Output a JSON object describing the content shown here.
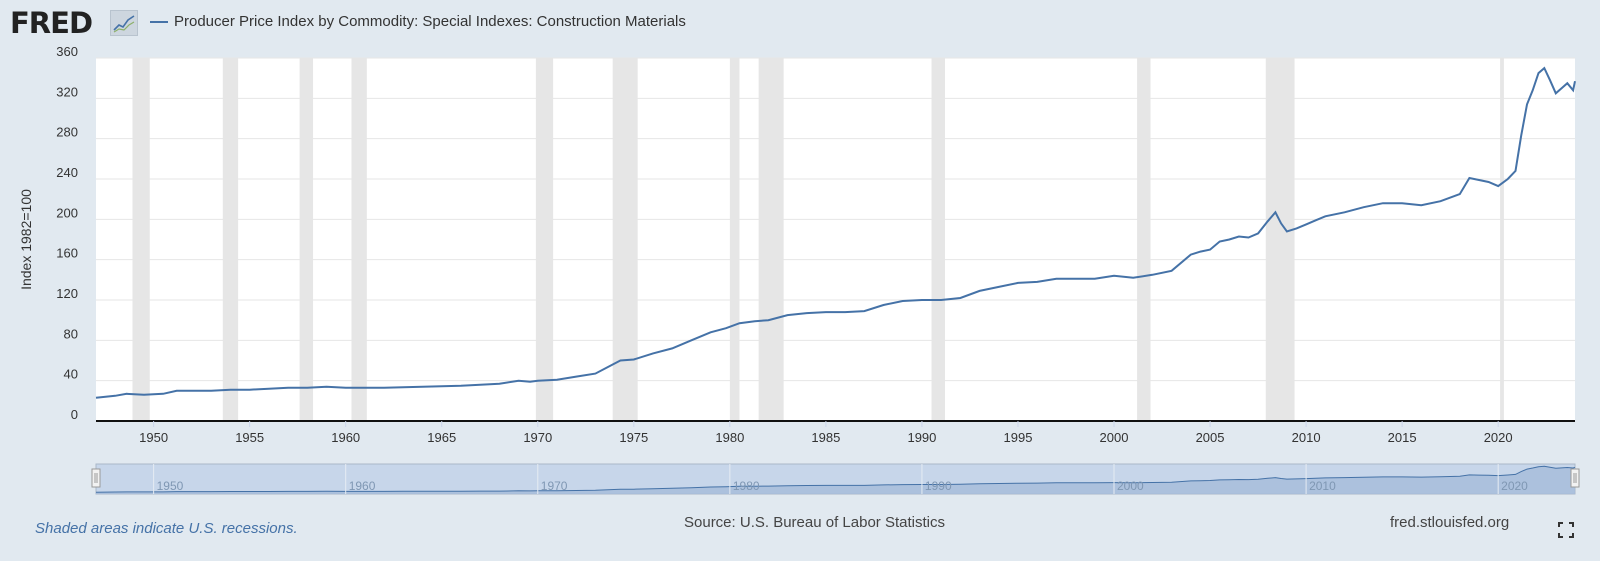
{
  "header": {
    "logo_text": "FRED",
    "logo_icon": "line-chart-icon",
    "series_title": "Producer Price Index by Commodity: Special Indexes: Construction Materials"
  },
  "colors": {
    "background": "#e1e9f0",
    "plot_background": "#ffffff",
    "series_line": "#4572a7",
    "recession_shade": "#e6e6e6",
    "grid": "#e6e6e6",
    "navigator_fill": "#a5bcd9",
    "navigator_line": "#4572a7"
  },
  "chart_data": {
    "type": "line",
    "title": "Producer Price Index by Commodity: Special Indexes: Construction Materials",
    "xlabel": "",
    "ylabel": "Index 1982=100",
    "xlim": [
      1947.0,
      2024.0
    ],
    "ylim": [
      0,
      360
    ],
    "yticks": [
      0,
      40,
      80,
      120,
      160,
      200,
      240,
      280,
      320,
      360
    ],
    "xticks": [
      1950,
      1955,
      1960,
      1965,
      1970,
      1975,
      1980,
      1985,
      1990,
      1995,
      2000,
      2005,
      2010,
      2015,
      2020
    ],
    "grid": true,
    "series": [
      {
        "name": "Producer Price Index by Commodity: Special Indexes: Construction Materials",
        "x": [
          1947.0,
          1948.0,
          1948.6,
          1949.5,
          1950.5,
          1951.2,
          1952,
          1953,
          1954,
          1955,
          1956,
          1957,
          1958,
          1959,
          1960,
          1961,
          1962,
          1963,
          1964,
          1965,
          1966,
          1967,
          1968,
          1969,
          1969.6,
          1970,
          1971,
          1972,
          1973,
          1973.8,
          1974.3,
          1975,
          1976,
          1977,
          1978,
          1979,
          1979.8,
          1980.5,
          1981.3,
          1982,
          1983,
          1984,
          1985,
          1986,
          1987,
          1988,
          1989,
          1990,
          1991,
          1992,
          1993,
          1994,
          1995,
          1996,
          1997,
          1998,
          1999,
          2000,
          2001,
          2002,
          2003,
          2004,
          2004.5,
          2005,
          2005.5,
          2006,
          2006.5,
          2007,
          2007.5,
          2008.0,
          2008.4,
          2008.7,
          2009.0,
          2009.5,
          2010,
          2010.5,
          2011,
          2012,
          2013,
          2014,
          2015,
          2016,
          2017,
          2018,
          2018.5,
          2019,
          2019.5,
          2020,
          2020.5,
          2020.9,
          2021.2,
          2021.5,
          2021.8,
          2022.1,
          2022.4,
          2022.7,
          2023.0,
          2023.3,
          2023.6,
          2023.9,
          2024.0
        ],
        "values": [
          23,
          25,
          27,
          26,
          27,
          30,
          30,
          30,
          31,
          31,
          32,
          33,
          33,
          34,
          33,
          33,
          33,
          33.5,
          34,
          34.5,
          35,
          36,
          37,
          40,
          39,
          40,
          41,
          44,
          47,
          55,
          60,
          61,
          67,
          72,
          80,
          88,
          92,
          97,
          99,
          100,
          105,
          107,
          108,
          108,
          109,
          115,
          119,
          120,
          120,
          122,
          129,
          133,
          137,
          138,
          141,
          141,
          141,
          144,
          142,
          145,
          149,
          165,
          168,
          170,
          178,
          180,
          183,
          182,
          186,
          198,
          207,
          196,
          188,
          191,
          195,
          199,
          203,
          207,
          212,
          216,
          216,
          214,
          218,
          225,
          241,
          239,
          237,
          233,
          240,
          248,
          283,
          314,
          328,
          345,
          350,
          338,
          325,
          330,
          335,
          328,
          337
        ]
      }
    ],
    "recessions": [
      [
        1948.9,
        1949.8
      ],
      [
        1953.6,
        1954.4
      ],
      [
        1957.6,
        1958.3
      ],
      [
        1960.3,
        1961.1
      ],
      [
        1969.9,
        1970.8
      ],
      [
        1973.9,
        1975.2
      ],
      [
        1980.0,
        1980.5
      ],
      [
        1981.5,
        1982.8
      ],
      [
        1990.5,
        1991.2
      ],
      [
        2001.2,
        2001.9
      ],
      [
        2007.9,
        2009.4
      ],
      [
        2020.1,
        2020.3
      ]
    ],
    "navigator": {
      "xticks": [
        1950,
        1960,
        1970,
        1980,
        1990,
        2000,
        2010,
        2020
      ]
    }
  },
  "footer": {
    "recession_note": "Shaded areas indicate U.S. recessions.",
    "source": "Source: U.S. Bureau of Labor Statistics",
    "url": "fred.stlouisfed.org",
    "fullscreen_icon": "fullscreen-icon"
  }
}
